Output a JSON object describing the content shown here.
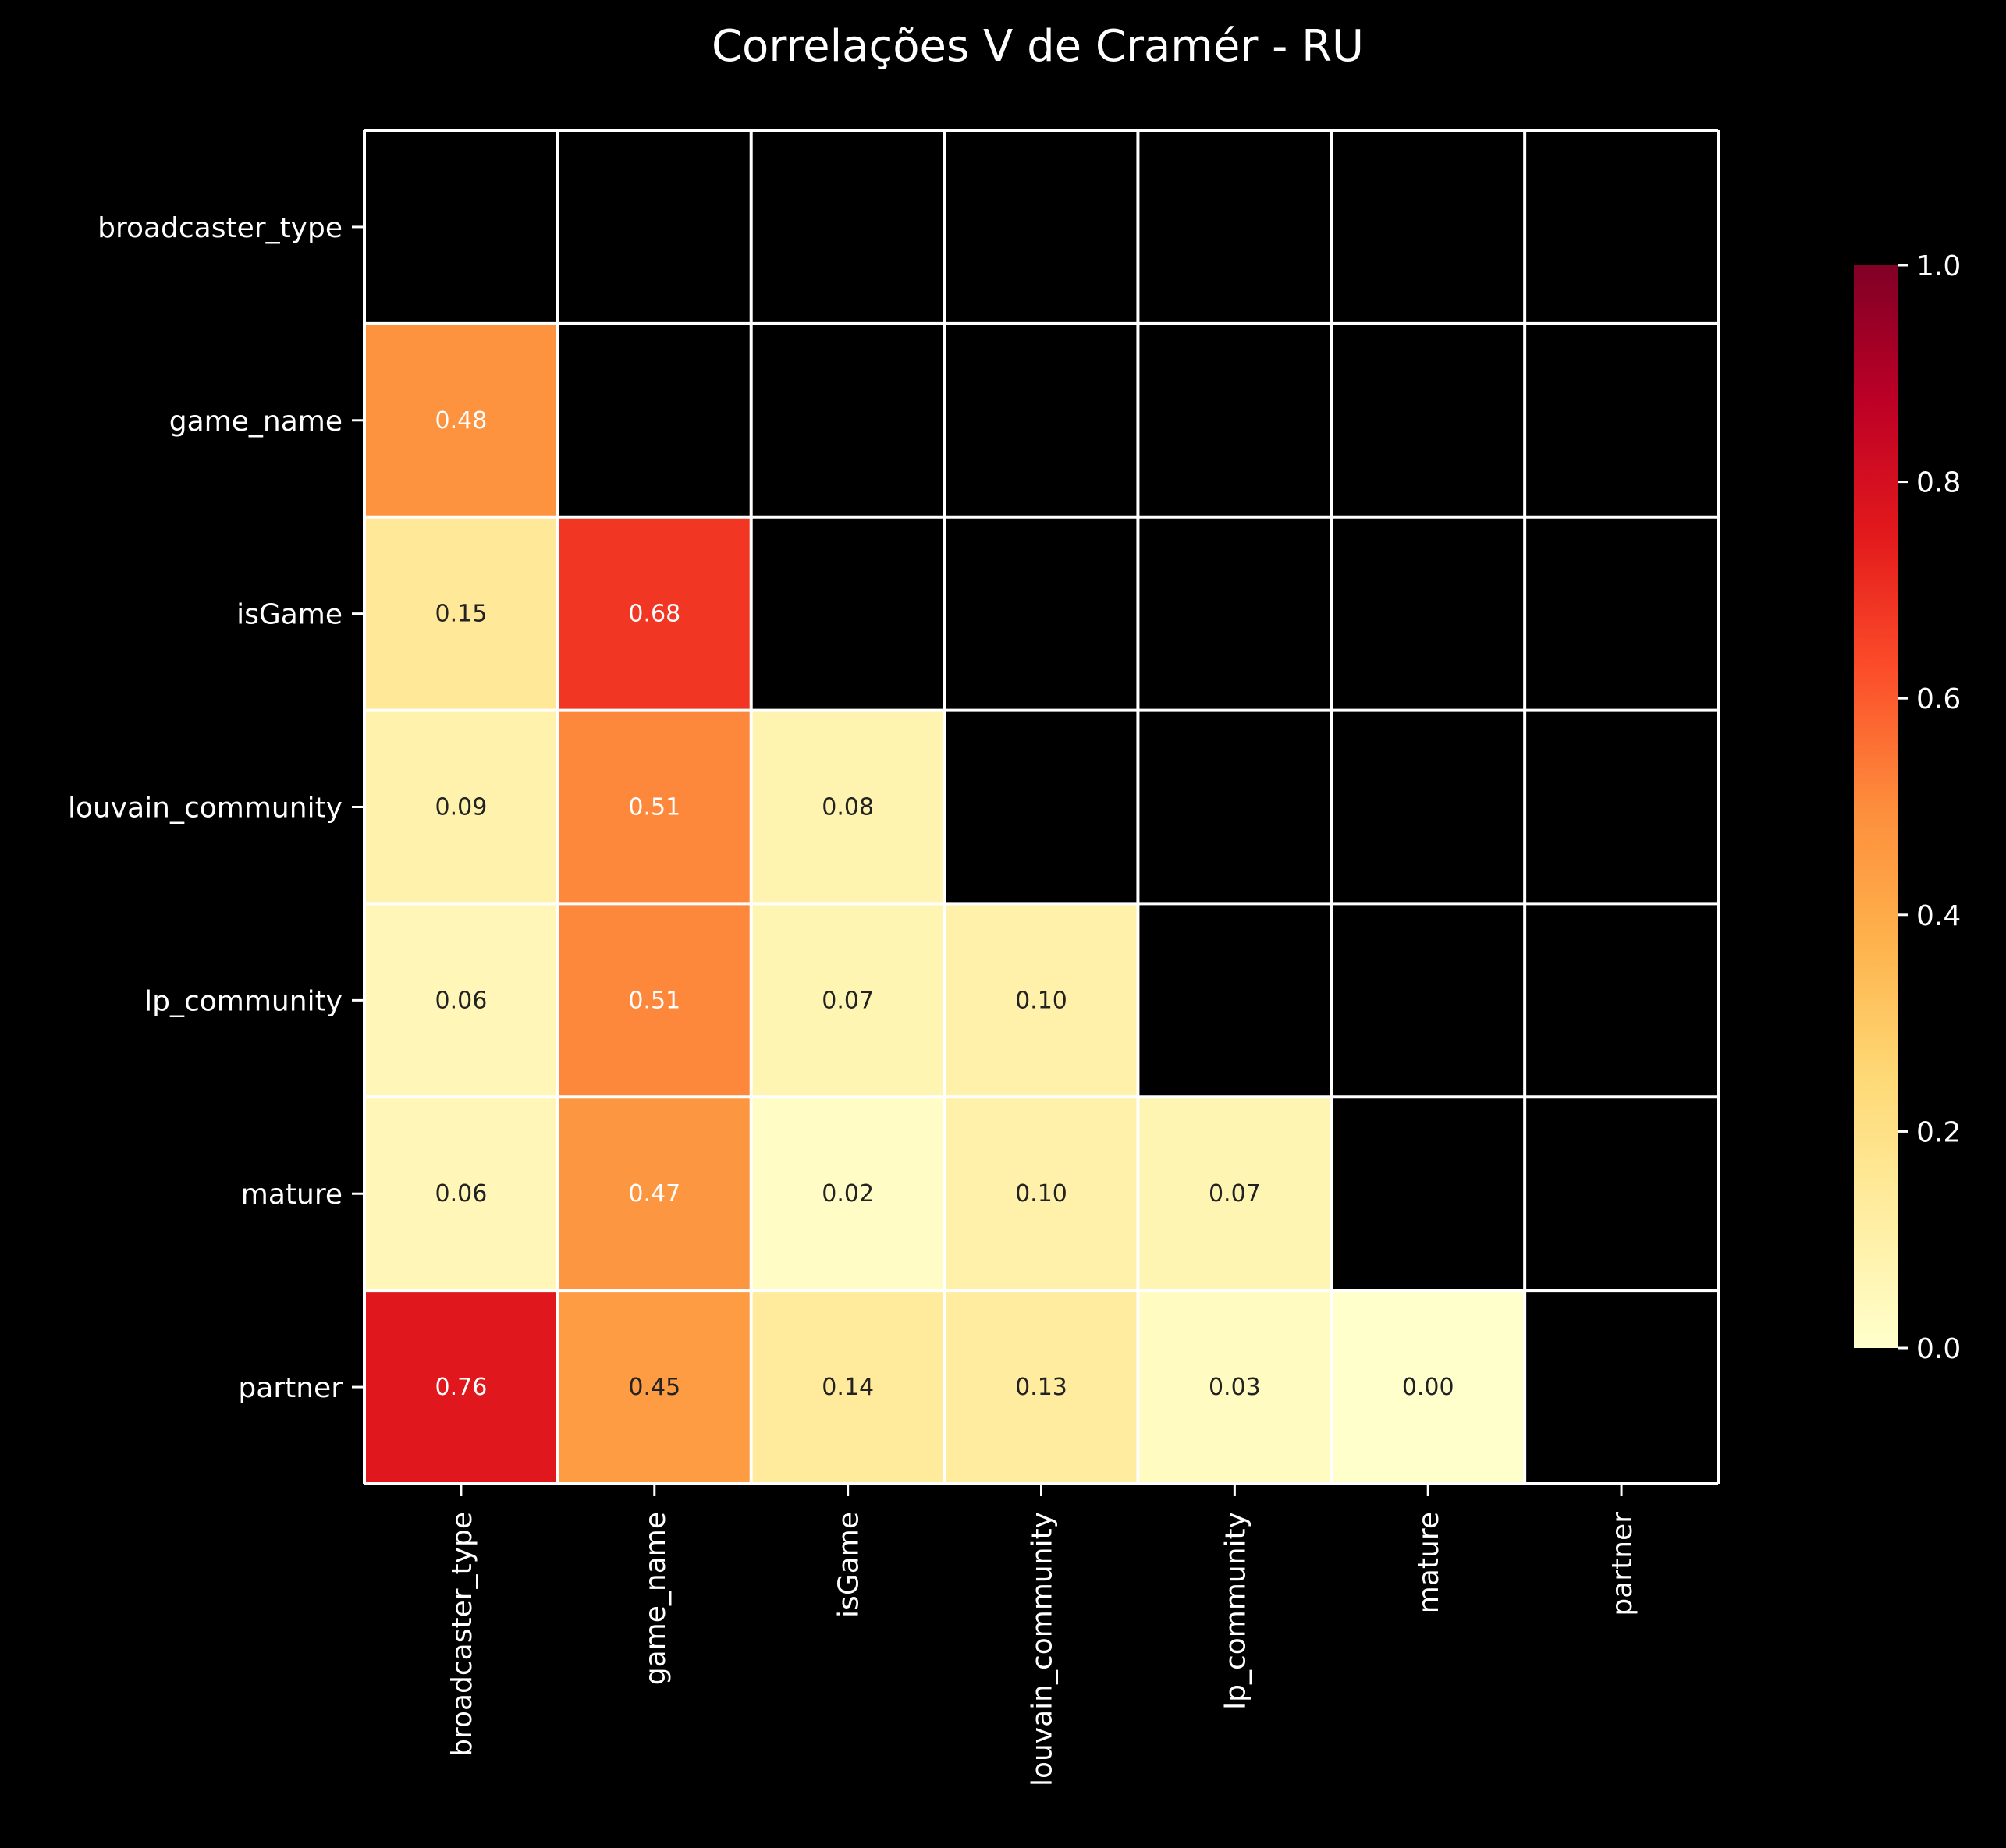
{
  "chart_data": {
    "type": "heatmap",
    "title": "Correlações V de Cramér - RU",
    "xlabel": "",
    "ylabel": "",
    "variables": [
      "broadcaster_type",
      "game_name",
      "isGame",
      "louvain_community",
      "lp_community",
      "mature",
      "partner"
    ],
    "lower_triangle_values": [
      [],
      [
        0.48
      ],
      [
        0.15,
        0.68
      ],
      [
        0.09,
        0.51,
        0.08
      ],
      [
        0.06,
        0.51,
        0.07,
        0.1
      ],
      [
        0.06,
        0.47,
        0.02,
        0.1,
        0.07
      ],
      [
        0.76,
        0.45,
        0.14,
        0.13,
        0.03,
        0.0
      ]
    ],
    "value_labels": [
      [],
      [
        "0.48"
      ],
      [
        "0.15",
        "0.68"
      ],
      [
        "0.09",
        "0.51",
        "0.08"
      ],
      [
        "0.06",
        "0.51",
        "0.07",
        "0.10"
      ],
      [
        "0.06",
        "0.47",
        "0.02",
        "0.10",
        "0.07"
      ],
      [
        "0.76",
        "0.45",
        "0.14",
        "0.13",
        "0.03",
        "0.00"
      ]
    ],
    "upper_triangle_and_diagonal": "masked",
    "colormap": "YlOrRd",
    "color_range": [
      0,
      1
    ],
    "colorbar_ticks": [
      "0.0",
      "0.2",
      "0.4",
      "0.6",
      "0.8",
      "1.0"
    ],
    "colors": {
      "background": "#000000",
      "grid_lines": "#ffffff",
      "text": "#ffffff",
      "masked_cell": "#000000"
    }
  }
}
